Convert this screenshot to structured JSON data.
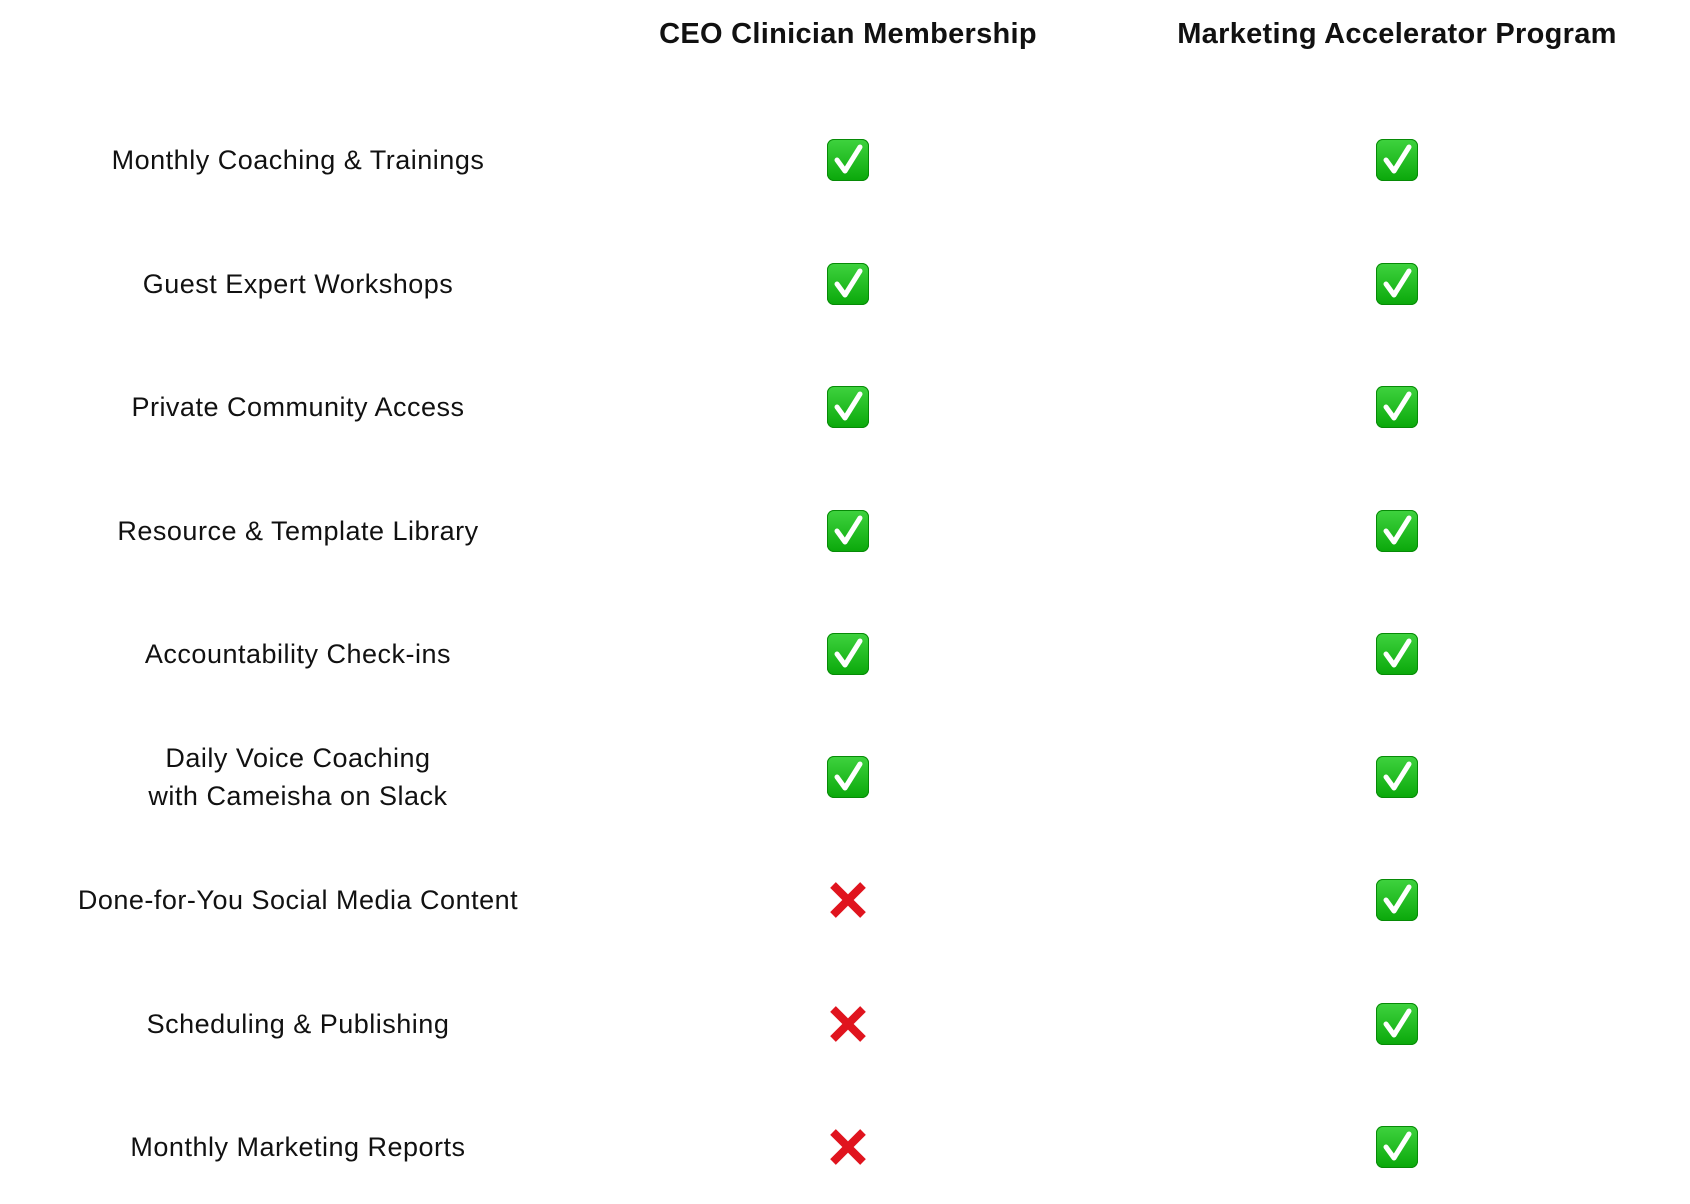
{
  "columns": [
    "CEO Clinician Membership",
    "Marketing Accelerator Program"
  ],
  "colors": {
    "check": "#1bbd1b",
    "cross": "#e0141e"
  },
  "rows": [
    {
      "feature": "Monthly Coaching & Trainings",
      "values": [
        "check",
        "check"
      ]
    },
    {
      "feature": "Guest Expert Workshops",
      "values": [
        "check",
        "check"
      ]
    },
    {
      "feature": "Private Community Access",
      "values": [
        "check",
        "check"
      ]
    },
    {
      "feature": "Resource & Template Library",
      "values": [
        "check",
        "check"
      ]
    },
    {
      "feature": "Accountability Check-ins",
      "values": [
        "check",
        "check"
      ]
    },
    {
      "feature": "Daily Voice Coaching with Cameisha on Slack",
      "values": [
        "check",
        "check"
      ]
    },
    {
      "feature": "Done-for-You Social Media Content",
      "values": [
        "cross",
        "check"
      ]
    },
    {
      "feature": "Scheduling & Publishing",
      "values": [
        "cross",
        "check"
      ]
    },
    {
      "feature": "Monthly Marketing Reports",
      "values": [
        "cross",
        "check"
      ]
    }
  ]
}
